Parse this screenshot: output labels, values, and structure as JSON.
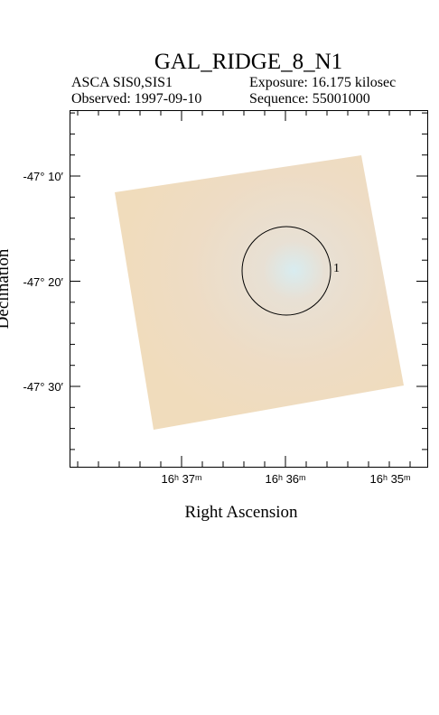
{
  "header": {
    "title": "GAL_RIDGE_8_N1",
    "instrument": "ASCA SIS0,SIS1",
    "exposure": "Exposure: 16.175 kilosec",
    "observed": "Observed: 1997-09-10",
    "sequence": "Sequence: 55001000"
  },
  "plot": {
    "x_label": "Right Ascension",
    "y_label": "Declination",
    "x_tick_labels": [
      "16ʰ 37ᵐ",
      "16ʰ 36ᵐ",
      "16ʰ 35ᵐ"
    ],
    "y_tick_labels": [
      "-47° 10′",
      "-47° 20′",
      "-47° 30′"
    ],
    "source_label": "1"
  }
}
